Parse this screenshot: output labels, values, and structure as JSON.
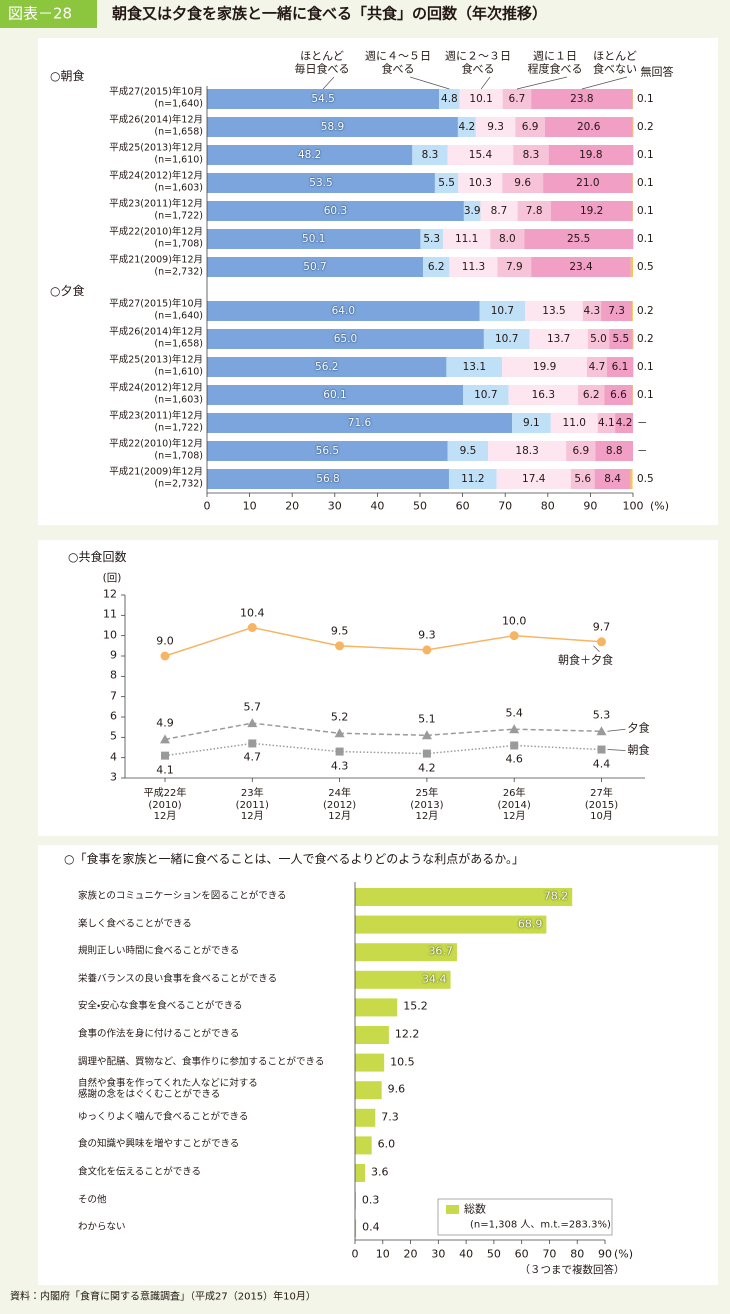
{
  "header": {
    "label": "図表－28",
    "title": "朝食又は夕食を家族と一緒に食べる「共食」の回数（年次推移）"
  },
  "source": "資料：内閣府「食育に関する意識調査」（平成27（2015）年10月）",
  "chart_data": [
    {
      "type": "stacked-bar",
      "orientation": "horizontal",
      "categories": [
        "平成27(2015)年10月",
        "平成26(2014)年12月",
        "平成25(2013)年12月",
        "平成24(2012)年12月",
        "平成23(2011)年12月",
        "平成22(2010)年12月",
        "平成21(2009)年12月"
      ],
      "n_labels": [
        "(n=1,640)",
        "(n=1,658)",
        "(n=1,610)",
        "(n=1,603)",
        "(n=1,722)",
        "(n=1,708)",
        "(n=2,732)"
      ],
      "legend": [
        {
          "name": "ほとんど\n毎日食べる",
          "color": "#7ba5dc"
        },
        {
          "name": "週に４～５日\n食べる",
          "color": "#bfe0f6"
        },
        {
          "name": "週に２～３日\n食べる",
          "color": "#fde6ef"
        },
        {
          "name": "週に１日\n程度食べる",
          "color": "#f7c3d9"
        },
        {
          "name": "ほとんど\n食べない",
          "color": "#f19fc4"
        },
        {
          "name": "無回答",
          "color": "#f2c94c"
        }
      ],
      "panels": [
        {
          "title": "○朝食",
          "series": [
            {
              "values": [
                54.5,
                58.9,
                48.2,
                53.5,
                60.3,
                50.1,
                50.7
              ]
            },
            {
              "values": [
                4.8,
                4.2,
                8.3,
                5.5,
                3.9,
                5.3,
                6.2
              ]
            },
            {
              "values": [
                10.1,
                9.3,
                15.4,
                10.3,
                8.7,
                11.1,
                11.3
              ]
            },
            {
              "values": [
                6.7,
                6.9,
                8.3,
                9.6,
                7.8,
                8.0,
                7.9
              ],
              "value_labels": [
                "6.7",
                "6.9",
                "8.3",
                "9.6",
                "7.8",
                "8.0",
                "7.9"
              ]
            },
            {
              "values": [
                23.8,
                20.6,
                19.8,
                21.0,
                19.2,
                25.5,
                23.4
              ],
              "value_labels": [
                "23.8",
                "20.6",
                "19.8",
                "21.0",
                "19.2",
                "25.5",
                "23.4"
              ]
            },
            {
              "values": [
                0.1,
                0.2,
                0.1,
                0.1,
                0.1,
                0.1,
                0.5
              ]
            }
          ]
        },
        {
          "title": "○夕食",
          "series": [
            {
              "values": [
                64.0,
                65.0,
                56.2,
                60.1,
                71.6,
                56.5,
                56.8
              ],
              "value_labels": [
                "64.0",
                "65.0",
                "56.2",
                "60.1",
                "71.6",
                "56.5",
                "56.8"
              ]
            },
            {
              "values": [
                10.7,
                10.7,
                13.1,
                10.7,
                9.1,
                9.5,
                11.2
              ]
            },
            {
              "values": [
                13.5,
                13.7,
                19.9,
                16.3,
                11.0,
                18.3,
                17.4
              ],
              "value_labels": [
                "13.5",
                "13.7",
                "19.9",
                "16.3",
                "11.0",
                "18.3",
                "17.4"
              ]
            },
            {
              "values": [
                4.3,
                5.0,
                4.7,
                6.2,
                4.1,
                6.9,
                5.6
              ],
              "value_labels": [
                "4.3",
                "5.0",
                "4.7",
                "6.2",
                "4.1",
                "6.9",
                "5.6"
              ]
            },
            {
              "values": [
                7.3,
                5.5,
                6.1,
                6.6,
                4.2,
                8.8,
                8.4
              ]
            },
            {
              "values": [
                0.2,
                0.2,
                0.1,
                0.1,
                null,
                null,
                0.5
              ],
              "value_labels": [
                "0.2",
                "0.2",
                "0.1",
                "0.1",
                "－",
                "－",
                "0.5"
              ]
            }
          ]
        }
      ],
      "xlim": [
        0,
        100
      ],
      "xticks": [
        0,
        10,
        20,
        30,
        40,
        50,
        60,
        70,
        80,
        90,
        100
      ],
      "xlabel": "(%)"
    },
    {
      "type": "line",
      "title": "○共食回数",
      "ylabel": "(回)",
      "categories": [
        "平成22年\n(2010)\n12月",
        "23年\n(2011)\n12月",
        "24年\n(2012)\n12月",
        "25年\n(2013)\n12月",
        "26年\n(2014)\n12月",
        "27年\n(2015)\n10月"
      ],
      "ylim": [
        3,
        12
      ],
      "yticks": [
        3,
        4,
        5,
        6,
        7,
        8,
        9,
        10,
        11,
        12
      ],
      "series": [
        {
          "name": "朝食＋夕食",
          "color": "#f7b563",
          "marker": "circle",
          "dash": "solid",
          "values": [
            9.0,
            10.4,
            9.5,
            9.3,
            10.0,
            9.7
          ],
          "value_labels": [
            "9.0",
            "10.4",
            "9.5",
            "9.3",
            "10.0",
            "9.7"
          ]
        },
        {
          "name": "夕食",
          "color": "#9a9a9a",
          "marker": "triangle",
          "dash": "dashed",
          "values": [
            4.9,
            5.7,
            5.2,
            5.1,
            5.4,
            5.3
          ]
        },
        {
          "name": "朝食",
          "color": "#9a9a9a",
          "marker": "square",
          "dash": "dotted",
          "values": [
            4.1,
            4.7,
            4.3,
            4.2,
            4.6,
            4.4
          ]
        }
      ]
    },
    {
      "type": "bar",
      "orientation": "horizontal",
      "title": "○「食事を家族と一緒に食べることは、一人で食べるよりどのような利点があるか。」",
      "categories": [
        "家族とのコミュニケーションを図ることができる",
        "楽しく食べることができる",
        "規則正しい時間に食べることができる",
        "栄養バランスの良い食事を食べることができる",
        "安全・安心な食事を食べることができる",
        "食事の作法を身に付けることができる",
        "調理や配膳、買物など、食事作りに参加することができる",
        "自然や食事を作ってくれた人などに対する\n感謝の念をはぐくむことができる",
        "ゆっくりよく噛んで食べることができる",
        "食の知識や興味を増やすことができる",
        "食文化を伝えることができる",
        "その他",
        "わからない"
      ],
      "values": [
        78.2,
        68.9,
        36.7,
        34.4,
        15.2,
        12.2,
        10.5,
        9.6,
        7.3,
        6.0,
        3.6,
        0.3,
        0.4
      ],
      "value_labels": [
        "78.2",
        "68.9",
        "36.7",
        "34.4",
        "15.2",
        "12.2",
        "10.5",
        "9.6",
        "7.3",
        "6.0",
        "3.6",
        "0.3",
        "0.4"
      ],
      "color": "#c8da4a",
      "xlim": [
        0,
        90
      ],
      "xticks": [
        0,
        10,
        20,
        30,
        40,
        50,
        60,
        70,
        80,
        90
      ],
      "xlabel": "(%)",
      "note": "（３つまで複数回答）",
      "legend": {
        "name": "総数",
        "detail": "(n=1,308 人、m.t.=283.3%)"
      }
    }
  ]
}
